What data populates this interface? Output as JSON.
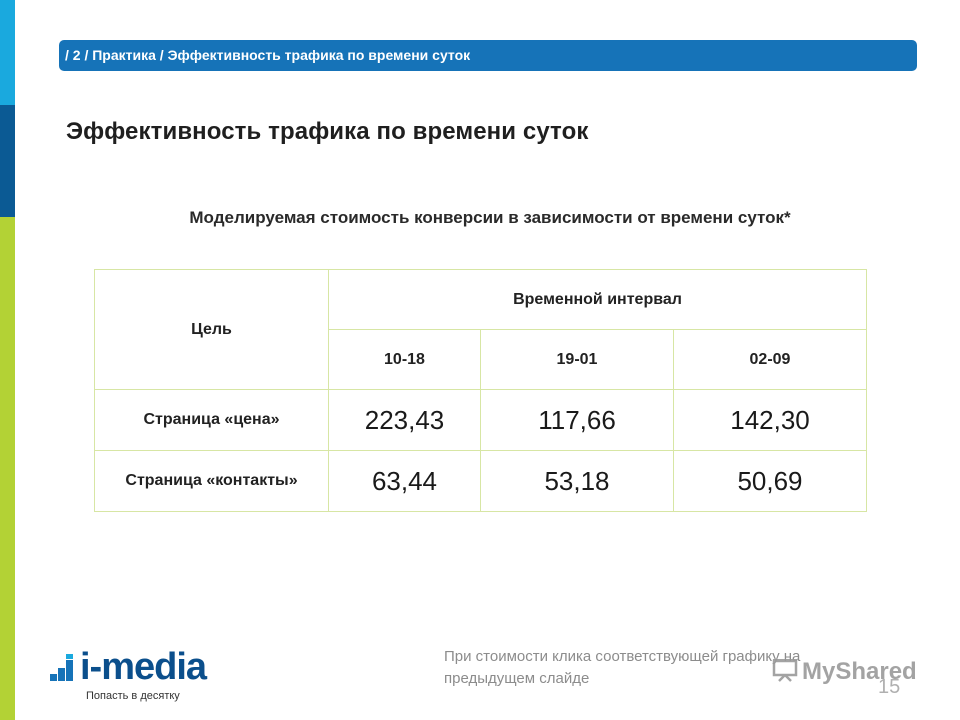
{
  "breadcrumb": "/ 2 / Практика / Эффективность трафика по времени суток",
  "title": "Эффективность трафика по времени суток",
  "subtitle": "Моделируемая стоимость конверсии в зависимости от времени суток*",
  "table": {
    "goal_header": "Цель",
    "interval_header": "Временной интервал",
    "intervals": [
      "10-18",
      "19-01",
      "02-09"
    ],
    "rows": [
      {
        "label": "Страница «цена»",
        "values": [
          "223,43",
          "117,66",
          "142,30"
        ]
      },
      {
        "label": "Страница «контакты»",
        "values": [
          "63,44",
          "53,18",
          "50,69"
        ]
      }
    ]
  },
  "logo": {
    "name": "i-media",
    "tagline": "Попасть в десятку"
  },
  "footnote": "При стоимости клика соответствующей графику на предыдущем слайде",
  "watermark": "MyShared",
  "page_number": "15",
  "colors": {
    "accent_blue": "#1673b8",
    "dark_blue": "#0b5a94",
    "light_blue": "#1aa9de",
    "lime": "#b3d235",
    "table_border": "#d7e6a4"
  }
}
